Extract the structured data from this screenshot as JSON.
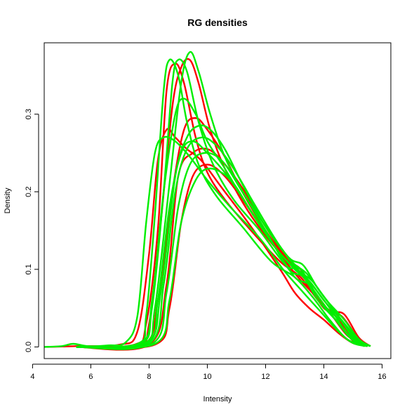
{
  "chart_data": {
    "type": "line",
    "title": "RG densities",
    "xlabel": "Intensity",
    "ylabel": "Density",
    "xlim": [
      4.4,
      16.3
    ],
    "ylim": [
      -0.015,
      0.392
    ],
    "xticks": [
      4,
      6,
      8,
      10,
      12,
      14,
      16
    ],
    "yticks": [
      0.0,
      0.1,
      0.2,
      0.3
    ],
    "ytick_labels": [
      "0.0",
      "0.1",
      "0.2",
      "0.3"
    ],
    "grid": false,
    "legend": "none",
    "colors": {
      "R": "#ff0000",
      "G": "#00ee00"
    },
    "series": [
      {
        "color": "R",
        "x": [
          4.5,
          5.5,
          7.0,
          7.6,
          8.0,
          8.3,
          8.6,
          8.9,
          9.3,
          9.8,
          10.5,
          11.5,
          12.5,
          13.0,
          13.5,
          14.0,
          14.5,
          15.0,
          15.5
        ],
        "y": [
          0,
          0.001,
          0.003,
          0.02,
          0.12,
          0.24,
          0.28,
          0.27,
          0.255,
          0.24,
          0.205,
          0.155,
          0.1,
          0.07,
          0.05,
          0.035,
          0.018,
          0.005,
          0.001
        ]
      },
      {
        "color": "R",
        "x": [
          5.5,
          7.5,
          7.9,
          8.3,
          8.6,
          8.9,
          9.2,
          9.6,
          10.0,
          10.6,
          11.5,
          12.5,
          13.2,
          13.8,
          14.4,
          15.0,
          15.4
        ],
        "y": [
          0,
          0.003,
          0.03,
          0.15,
          0.33,
          0.365,
          0.34,
          0.27,
          0.225,
          0.19,
          0.15,
          0.11,
          0.09,
          0.06,
          0.035,
          0.008,
          0.001
        ]
      },
      {
        "color": "R",
        "x": [
          5.5,
          7.6,
          8.0,
          8.4,
          8.8,
          9.1,
          9.4,
          9.7,
          10.1,
          10.6,
          11.4,
          12.4,
          13.1,
          13.6,
          14.2,
          14.8,
          15.4
        ],
        "y": [
          0,
          0.003,
          0.03,
          0.16,
          0.31,
          0.36,
          0.37,
          0.34,
          0.28,
          0.23,
          0.175,
          0.125,
          0.1,
          0.075,
          0.045,
          0.015,
          0.001
        ]
      },
      {
        "color": "R",
        "x": [
          5.5,
          7.8,
          8.3,
          8.8,
          9.2,
          9.6,
          10.0,
          10.6,
          11.2,
          12.0,
          12.8,
          13.2,
          13.8,
          14.4,
          15.0,
          15.5
        ],
        "y": [
          0,
          0.003,
          0.06,
          0.2,
          0.28,
          0.295,
          0.28,
          0.245,
          0.2,
          0.15,
          0.11,
          0.1,
          0.06,
          0.04,
          0.012,
          0.001
        ]
      },
      {
        "color": "R",
        "x": [
          5.5,
          8.0,
          8.6,
          9.0,
          9.5,
          10.0,
          10.5,
          11.2,
          12.0,
          12.8,
          13.4,
          14.0,
          14.6,
          15.2,
          15.6
        ],
        "y": [
          0,
          0.003,
          0.08,
          0.22,
          0.25,
          0.255,
          0.24,
          0.205,
          0.155,
          0.11,
          0.085,
          0.05,
          0.04,
          0.01,
          0.001
        ]
      },
      {
        "color": "R",
        "x": [
          5.5,
          8.2,
          8.7,
          9.1,
          9.5,
          10.0,
          10.6,
          11.4,
          12.2,
          13.0,
          13.6,
          14.2,
          14.7,
          15.2,
          15.6
        ],
        "y": [
          0,
          0.003,
          0.05,
          0.16,
          0.22,
          0.235,
          0.22,
          0.18,
          0.135,
          0.095,
          0.07,
          0.047,
          0.042,
          0.012,
          0.001
        ]
      },
      {
        "color": "G",
        "x": [
          4.4,
          5.0,
          5.4,
          5.9,
          6.6,
          7.2,
          7.6,
          7.9,
          8.2,
          8.5,
          8.9,
          9.4,
          10.0,
          10.8,
          11.8,
          12.6,
          13.3,
          13.9,
          14.5,
          15.0,
          15.5
        ],
        "y": [
          0,
          0.001,
          0.004,
          0.001,
          0.002,
          0.006,
          0.04,
          0.16,
          0.25,
          0.27,
          0.265,
          0.245,
          0.215,
          0.18,
          0.14,
          0.1,
          0.07,
          0.045,
          0.02,
          0.005,
          0.001
        ]
      },
      {
        "color": "G",
        "x": [
          5.5,
          7.6,
          7.9,
          8.2,
          8.5,
          8.7,
          9.0,
          9.3,
          9.7,
          10.3,
          11.2,
          12.2,
          13.0,
          13.6,
          14.2,
          14.8,
          15.4
        ],
        "y": [
          0,
          0.004,
          0.04,
          0.17,
          0.33,
          0.37,
          0.35,
          0.29,
          0.235,
          0.195,
          0.155,
          0.11,
          0.09,
          0.065,
          0.035,
          0.01,
          0.001
        ]
      },
      {
        "color": "G",
        "x": [
          5.5,
          7.7,
          8.1,
          8.5,
          8.8,
          9.0,
          9.3,
          9.7,
          10.2,
          10.9,
          11.8,
          12.7,
          13.2,
          13.7,
          14.3,
          14.9,
          15.4
        ],
        "y": [
          0,
          0.004,
          0.05,
          0.2,
          0.34,
          0.37,
          0.355,
          0.29,
          0.235,
          0.19,
          0.15,
          0.105,
          0.1,
          0.07,
          0.04,
          0.012,
          0.001
        ]
      },
      {
        "color": "G",
        "x": [
          5.5,
          7.8,
          8.2,
          8.7,
          9.1,
          9.4,
          9.7,
          10.1,
          10.6,
          11.3,
          12.2,
          12.9,
          13.4,
          13.9,
          14.5,
          15.1,
          15.5
        ],
        "y": [
          0,
          0.004,
          0.05,
          0.21,
          0.34,
          0.38,
          0.355,
          0.3,
          0.245,
          0.195,
          0.145,
          0.11,
          0.095,
          0.07,
          0.04,
          0.01,
          0.001
        ]
      },
      {
        "color": "G",
        "x": [
          5.5,
          7.7,
          8.1,
          8.5,
          8.9,
          9.2,
          9.6,
          10.0,
          10.6,
          11.4,
          12.3,
          13.0,
          13.5,
          14.0,
          14.6,
          15.2,
          15.6
        ],
        "y": [
          0,
          0.004,
          0.06,
          0.2,
          0.3,
          0.32,
          0.3,
          0.265,
          0.23,
          0.18,
          0.13,
          0.1,
          0.085,
          0.06,
          0.035,
          0.008,
          0.001
        ]
      },
      {
        "color": "G",
        "x": [
          5.5,
          7.9,
          8.4,
          8.9,
          9.3,
          9.7,
          10.1,
          10.6,
          11.2,
          12.0,
          12.8,
          13.3,
          13.8,
          14.4,
          15.0,
          15.5
        ],
        "y": [
          0,
          0.004,
          0.07,
          0.22,
          0.27,
          0.285,
          0.28,
          0.255,
          0.21,
          0.155,
          0.115,
          0.105,
          0.075,
          0.045,
          0.012,
          0.001
        ]
      },
      {
        "color": "G",
        "x": [
          5.5,
          8.0,
          8.5,
          8.9,
          9.3,
          9.8,
          10.3,
          10.9,
          11.6,
          12.4,
          13.1,
          13.6,
          14.1,
          14.7,
          15.2,
          15.6
        ],
        "y": [
          0,
          0.004,
          0.08,
          0.2,
          0.255,
          0.27,
          0.26,
          0.23,
          0.185,
          0.135,
          0.1,
          0.085,
          0.06,
          0.035,
          0.01,
          0.001
        ]
      },
      {
        "color": "G",
        "x": [
          5.5,
          8.1,
          8.6,
          9.0,
          9.4,
          9.9,
          10.5,
          11.2,
          12.0,
          12.8,
          13.3,
          13.8,
          14.4,
          15.0,
          15.5
        ],
        "y": [
          0,
          0.004,
          0.07,
          0.18,
          0.235,
          0.25,
          0.24,
          0.2,
          0.15,
          0.1,
          0.09,
          0.06,
          0.035,
          0.01,
          0.001
        ]
      },
      {
        "color": "G",
        "x": [
          5.5,
          8.2,
          8.7,
          9.1,
          9.6,
          10.1,
          10.8,
          11.5,
          12.3,
          13.0,
          13.5,
          14.1,
          14.7,
          15.2,
          15.6
        ],
        "y": [
          0,
          0.004,
          0.06,
          0.16,
          0.215,
          0.23,
          0.215,
          0.175,
          0.13,
          0.09,
          0.08,
          0.05,
          0.03,
          0.008,
          0.001
        ]
      },
      {
        "color": "G",
        "x": [
          5.5,
          7.9,
          8.3,
          8.7,
          9.1,
          9.5,
          10.0,
          10.7,
          11.5,
          12.4,
          13.2,
          13.7,
          14.3,
          14.9,
          15.4
        ],
        "y": [
          0,
          0.004,
          0.06,
          0.18,
          0.25,
          0.265,
          0.25,
          0.22,
          0.175,
          0.125,
          0.095,
          0.075,
          0.045,
          0.012,
          0.001
        ]
      }
    ]
  }
}
